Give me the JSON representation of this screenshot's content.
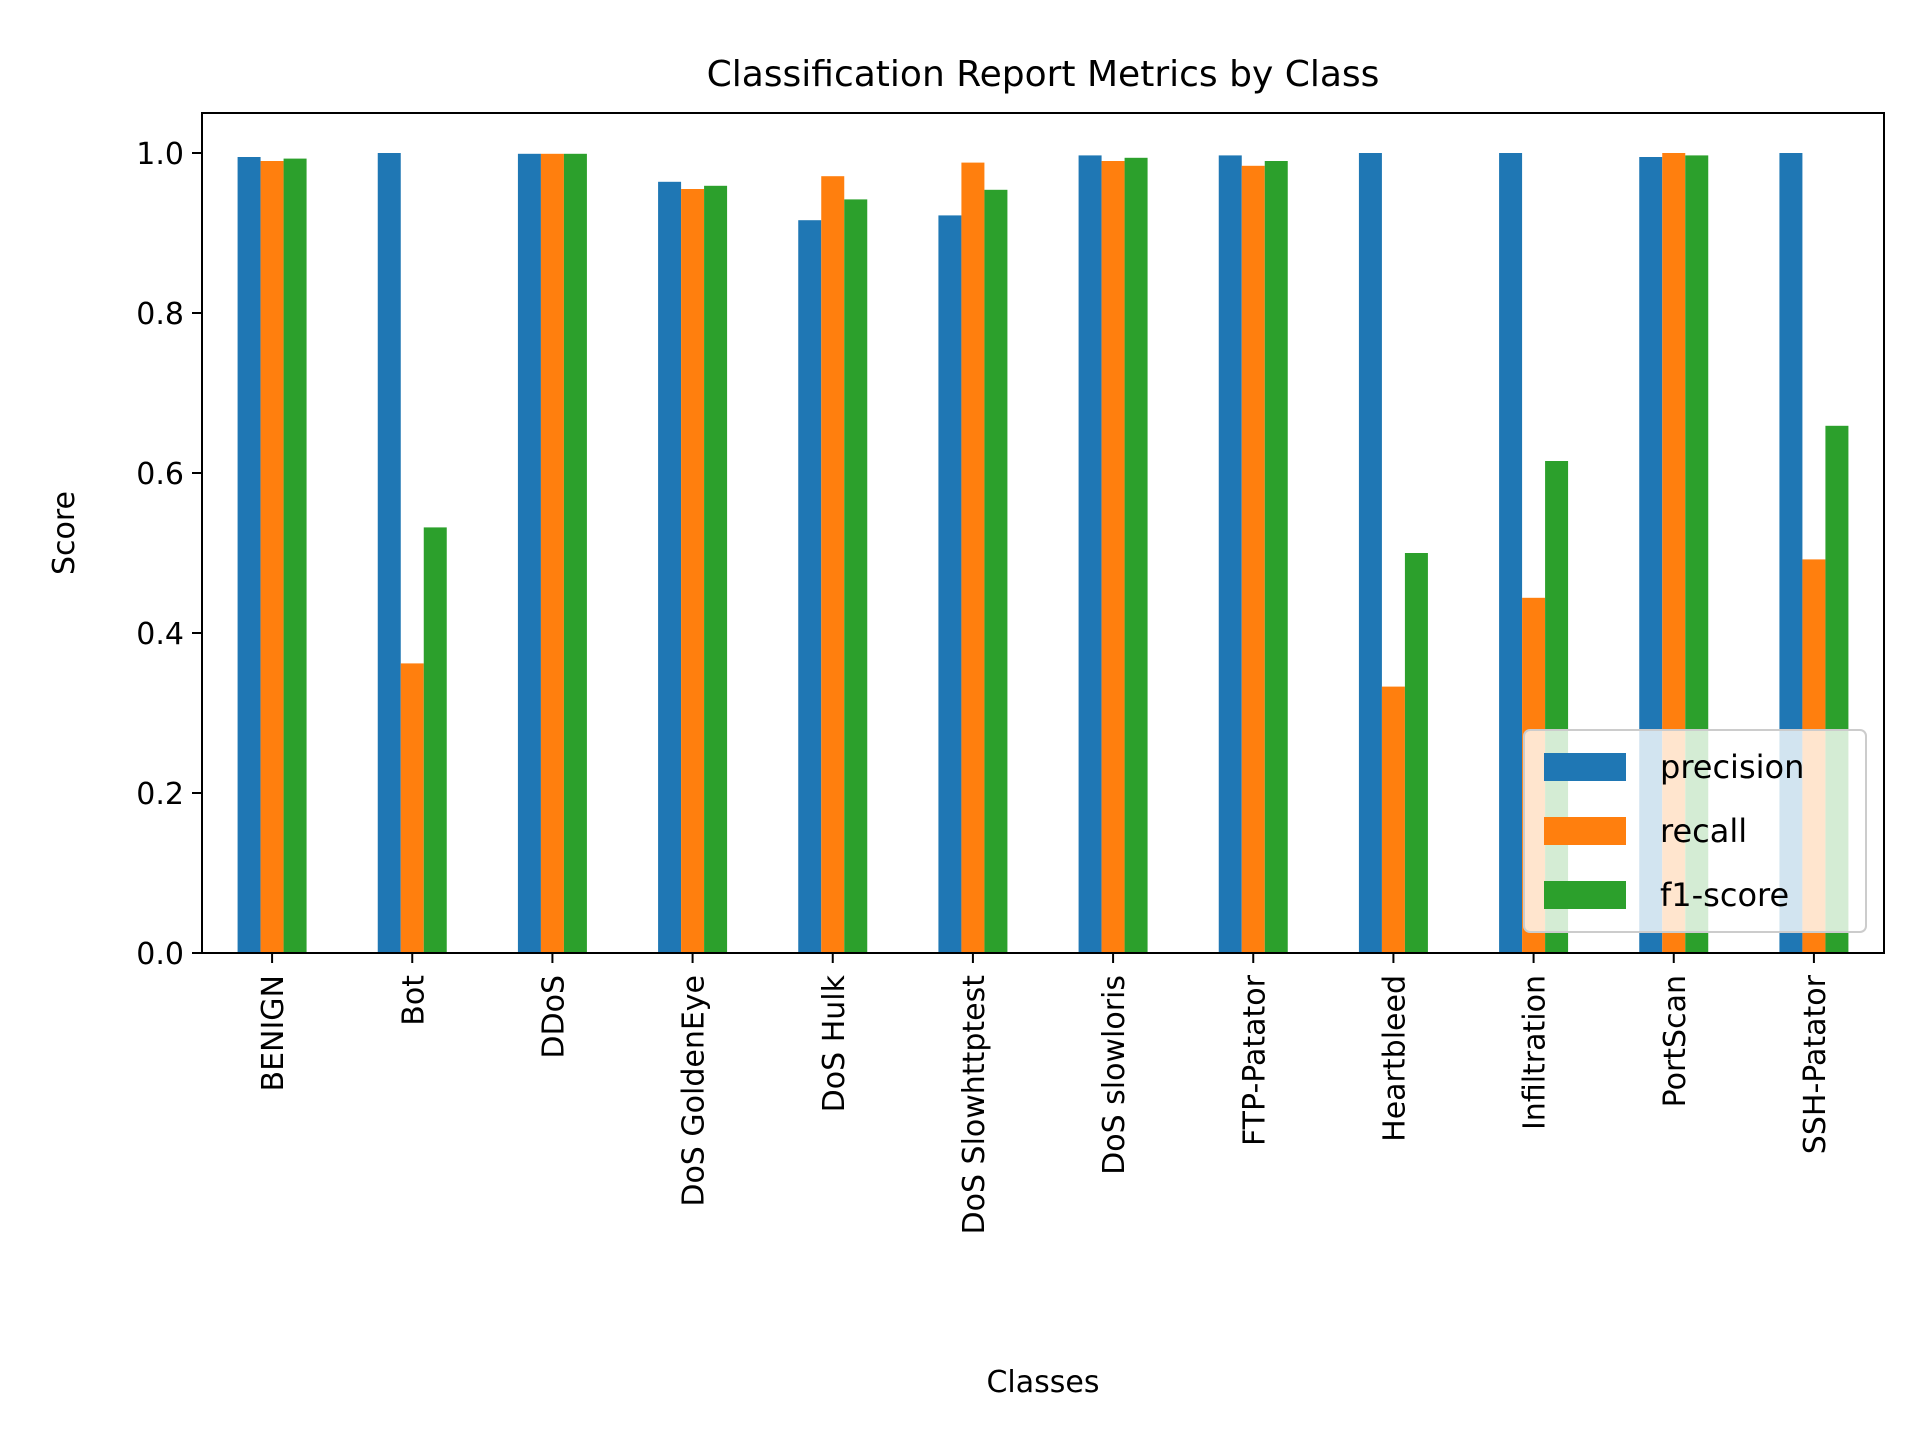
{
  "chart_data": {
    "type": "bar",
    "title": "Classification Report Metrics by Class",
    "xlabel": "Classes",
    "ylabel": "Score",
    "ylim": [
      0,
      1.05
    ],
    "yticks": [
      "0.0",
      "0.2",
      "0.4",
      "0.6",
      "0.8",
      "1.0"
    ],
    "grid": false,
    "legend_position": "lower-right",
    "categories": [
      "BENIGN",
      "Bot",
      "DDoS",
      "DoS GoldenEye",
      "DoS Hulk",
      "DoS Slowhttptest",
      "DoS slowloris",
      "FTP-Patator",
      "Heartbleed",
      "Infiltration",
      "PortScan",
      "SSH-Patator"
    ],
    "series": [
      {
        "name": "precision",
        "color": "#1f77b4",
        "values": [
          0.995,
          1.0,
          0.999,
          0.964,
          0.916,
          0.922,
          0.997,
          0.997,
          1.0,
          1.0,
          0.995,
          1.0
        ]
      },
      {
        "name": "recall",
        "color": "#ff7f0e",
        "values": [
          0.99,
          0.362,
          0.999,
          0.955,
          0.971,
          0.988,
          0.99,
          0.984,
          0.333,
          0.444,
          1.0,
          0.492
        ]
      },
      {
        "name": "f1-score",
        "color": "#2ca02c",
        "values": [
          0.993,
          0.532,
          0.999,
          0.959,
          0.942,
          0.954,
          0.994,
          0.99,
          0.5,
          0.615,
          0.997,
          0.659
        ]
      }
    ]
  }
}
